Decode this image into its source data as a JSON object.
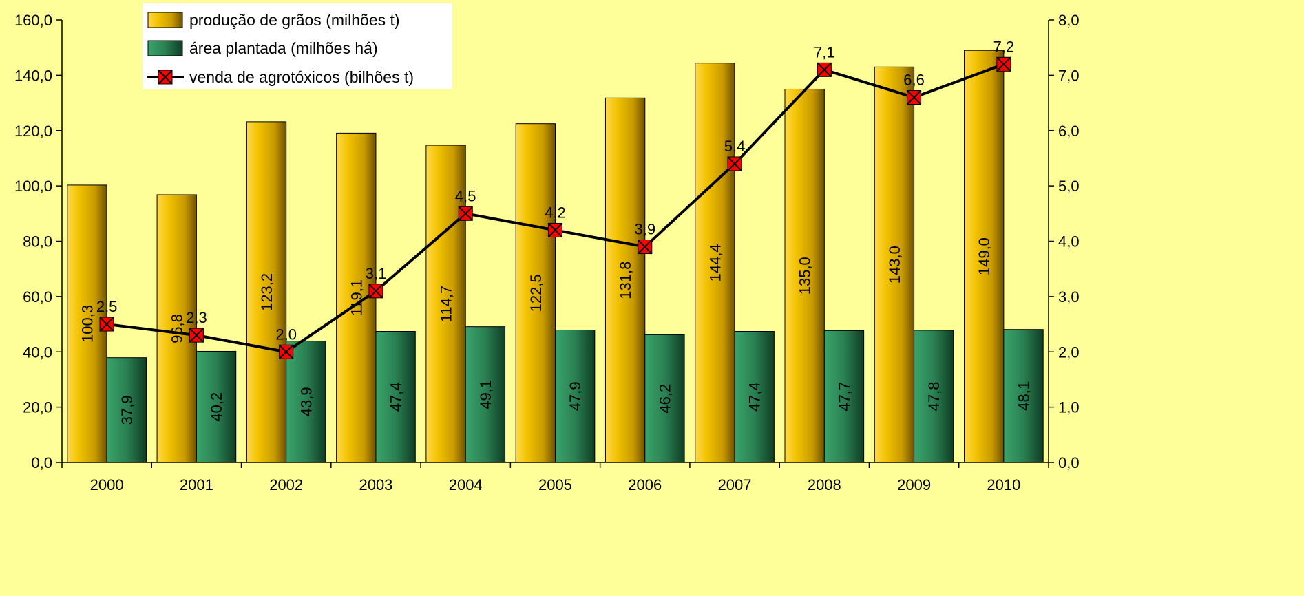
{
  "colors": {
    "background": "#FFFF99",
    "grain_bar": "#F0C000",
    "area_bar": "#2E8B5A",
    "line": "#000000",
    "marker": "#FF0000"
  },
  "chart_data": {
    "type": "bar",
    "categories": [
      "2000",
      "2001",
      "2002",
      "2003",
      "2004",
      "2005",
      "2006",
      "2007",
      "2008",
      "2009",
      "2010"
    ],
    "series": [
      {
        "name": "produção de grãos (milhões t)",
        "type": "bar",
        "axis": "left",
        "color": "#F0C000",
        "values": [
          100.3,
          96.8,
          123.2,
          119.1,
          114.7,
          122.5,
          131.8,
          144.4,
          135.0,
          143.0,
          149.0
        ],
        "labels": [
          "100,3",
          "96,8",
          "123,2",
          "119,1",
          "114,7",
          "122,5",
          "131,8",
          "144,4",
          "135,0",
          "143,0",
          "149,0"
        ]
      },
      {
        "name": "área plantada (milhões há)",
        "type": "bar",
        "axis": "left",
        "color": "#2E8B5A",
        "values": [
          37.9,
          40.2,
          43.9,
          47.4,
          49.1,
          47.9,
          46.2,
          47.4,
          47.7,
          47.8,
          48.1
        ],
        "labels": [
          "37,9",
          "40,2",
          "43,9",
          "47,4",
          "49,1",
          "47,9",
          "46,2",
          "47,4",
          "47,7",
          "47,8",
          "48,1"
        ]
      },
      {
        "name": "venda de agrotóxicos (bilhões t)",
        "type": "line",
        "axis": "right",
        "color": "#000000",
        "marker_color": "#FF0000",
        "values": [
          2.5,
          2.3,
          2.0,
          3.1,
          4.5,
          4.2,
          3.9,
          5.4,
          7.1,
          6.6,
          7.2
        ],
        "labels": [
          "2,5",
          "2,3",
          "2,0",
          "3,1",
          "4,5",
          "4,2",
          "3,9",
          "5,4",
          "7,1",
          "6,6",
          "7,2"
        ]
      }
    ],
    "y_left": {
      "lim": [
        0,
        160
      ],
      "ticks": [
        0,
        20,
        40,
        60,
        80,
        100,
        120,
        140,
        160
      ],
      "tick_labels": [
        "0,0",
        "20,0",
        "40,0",
        "60,0",
        "80,0",
        "100,0",
        "120,0",
        "140,0",
        "160,0"
      ]
    },
    "y_right": {
      "lim": [
        0,
        8
      ],
      "ticks": [
        0,
        1,
        2,
        3,
        4,
        5,
        6,
        7,
        8
      ],
      "tick_labels": [
        "0,0",
        "1,0",
        "2,0",
        "3,0",
        "4,0",
        "5,0",
        "6,0",
        "7,0",
        "8,0"
      ]
    },
    "title": "",
    "xlabel": "",
    "ylabel": "",
    "grid": false,
    "legend": "top-left"
  }
}
